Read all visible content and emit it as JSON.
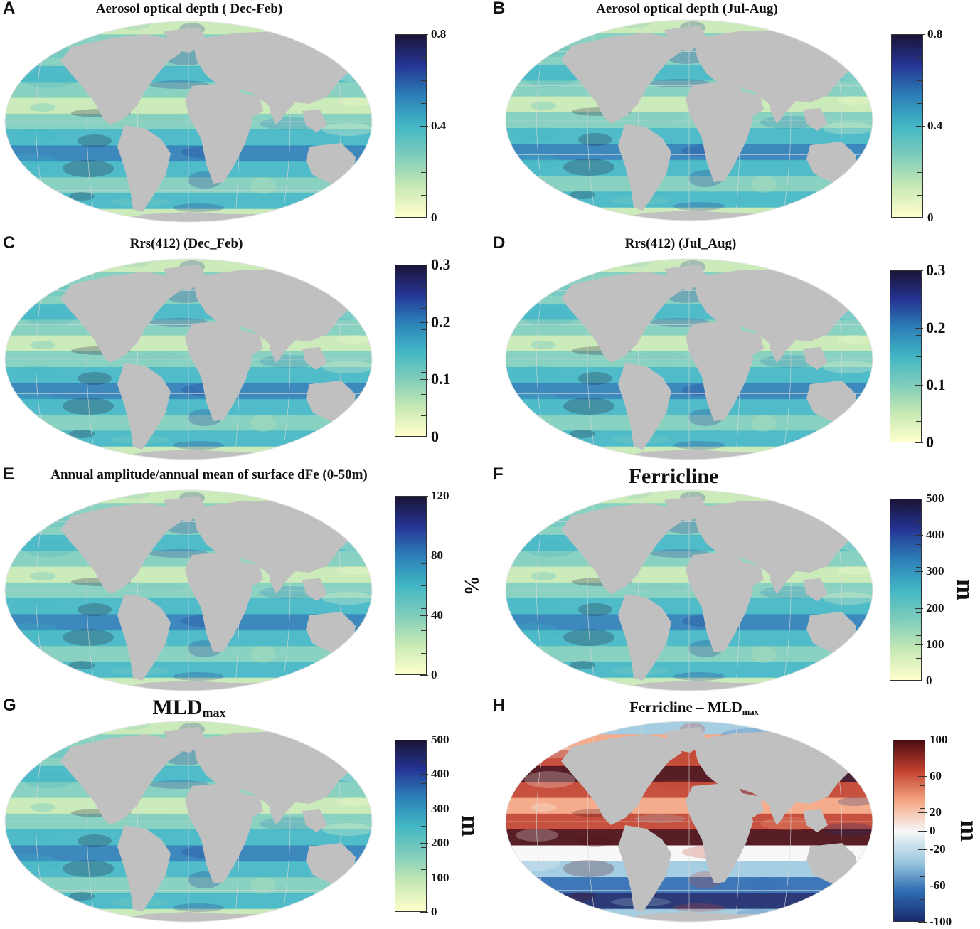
{
  "colors": {
    "land": "#c0c0c0",
    "graticule": "#d8d8d8",
    "ygb": [
      "#ffffcc",
      "#c7e9b4",
      "#7fcdbb",
      "#41b6c4",
      "#2c7fb8",
      "#253494",
      "#1a1436"
    ],
    "rdbu": [
      "#1a2a6c",
      "#2f6db3",
      "#9ecae1",
      "#f7f7f7",
      "#f4a582",
      "#c2412e",
      "#4a0b12"
    ]
  },
  "panels": [
    {
      "label": "A",
      "title": "Aerosol optical depth ( Dec-Feb)",
      "map_alt": "world-map-aerosol-dec-feb",
      "colorbar": {
        "ticks": [
          {
            "value": 0,
            "label": "0"
          },
          {
            "value": 0.4,
            "label": "0.4"
          },
          {
            "value": 0.8,
            "label": "0.8"
          }
        ],
        "range": [
          0,
          0.8
        ],
        "unit": "",
        "scheme": "ygb"
      }
    },
    {
      "label": "B",
      "title": "Aerosol optical depth (Jul-Aug)",
      "colorbar": {
        "ticks": [
          {
            "value": 0,
            "label": "0"
          },
          {
            "value": 0.4,
            "label": "0.4"
          },
          {
            "value": 0.8,
            "label": "0.8"
          }
        ],
        "range": [
          0,
          0.8
        ],
        "unit": "",
        "scheme": "ygb"
      }
    },
    {
      "label": "C",
      "title": "Rrs(412) (Dec_Feb)",
      "colorbar": {
        "ticks": [
          {
            "value": 0,
            "label": "0"
          },
          {
            "value": 0.1,
            "label": "0.1"
          },
          {
            "value": 0.2,
            "label": "0.2"
          },
          {
            "value": 0.3,
            "label": "0.3"
          }
        ],
        "range": [
          0,
          0.3
        ],
        "unit": "",
        "scheme": "ygb"
      }
    },
    {
      "label": "D",
      "title": "Rrs(412) (Jul_Aug)",
      "colorbar": {
        "ticks": [
          {
            "value": 0,
            "label": "0"
          },
          {
            "value": 0.1,
            "label": "0.1"
          },
          {
            "value": 0.2,
            "label": "0.2"
          },
          {
            "value": 0.3,
            "label": "0.3"
          }
        ],
        "range": [
          0,
          0.3
        ],
        "unit": "",
        "scheme": "ygb"
      }
    },
    {
      "label": "E",
      "title": "Annual amplitude/annual mean of surface dFe (0-50m)",
      "colorbar": {
        "ticks": [
          {
            "value": 0,
            "label": "0"
          },
          {
            "value": 40,
            "label": "40"
          },
          {
            "value": 80,
            "label": "80"
          },
          {
            "value": 120,
            "label": "120"
          }
        ],
        "range": [
          0,
          120
        ],
        "unit": "%",
        "scheme": "ygb"
      }
    },
    {
      "label": "F",
      "title": "Ferricline",
      "colorbar": {
        "ticks": [
          {
            "value": 0,
            "label": "0"
          },
          {
            "value": 100,
            "label": "100"
          },
          {
            "value": 200,
            "label": "200"
          },
          {
            "value": 300,
            "label": "300"
          },
          {
            "value": 400,
            "label": "400"
          },
          {
            "value": 500,
            "label": "500"
          }
        ],
        "range": [
          0,
          500
        ],
        "unit": "m",
        "scheme": "ygb"
      }
    },
    {
      "label": "G",
      "title": "MLD",
      "title_sub": "max",
      "colorbar": {
        "ticks": [
          {
            "value": 0,
            "label": "0"
          },
          {
            "value": 100,
            "label": "100"
          },
          {
            "value": 200,
            "label": "200"
          },
          {
            "value": 300,
            "label": "300"
          },
          {
            "value": 400,
            "label": "400"
          },
          {
            "value": 500,
            "label": "500"
          }
        ],
        "range": [
          0,
          500
        ],
        "unit": "m",
        "scheme": "ygb"
      }
    },
    {
      "label": "H",
      "title": "Ferricline – MLD",
      "title_sub": "max",
      "colorbar": {
        "ticks": [
          {
            "value": -100,
            "label": "-100"
          },
          {
            "value": -60,
            "label": "-60"
          },
          {
            "value": -20,
            "label": "-20"
          },
          {
            "value": 0,
            "label": "0"
          },
          {
            "value": 20,
            "label": "20"
          },
          {
            "value": 60,
            "label": "60"
          },
          {
            "value": 100,
            "label": "100"
          }
        ],
        "range": [
          -100,
          100
        ],
        "unit": "m",
        "scheme": "rdbu"
      }
    }
  ]
}
